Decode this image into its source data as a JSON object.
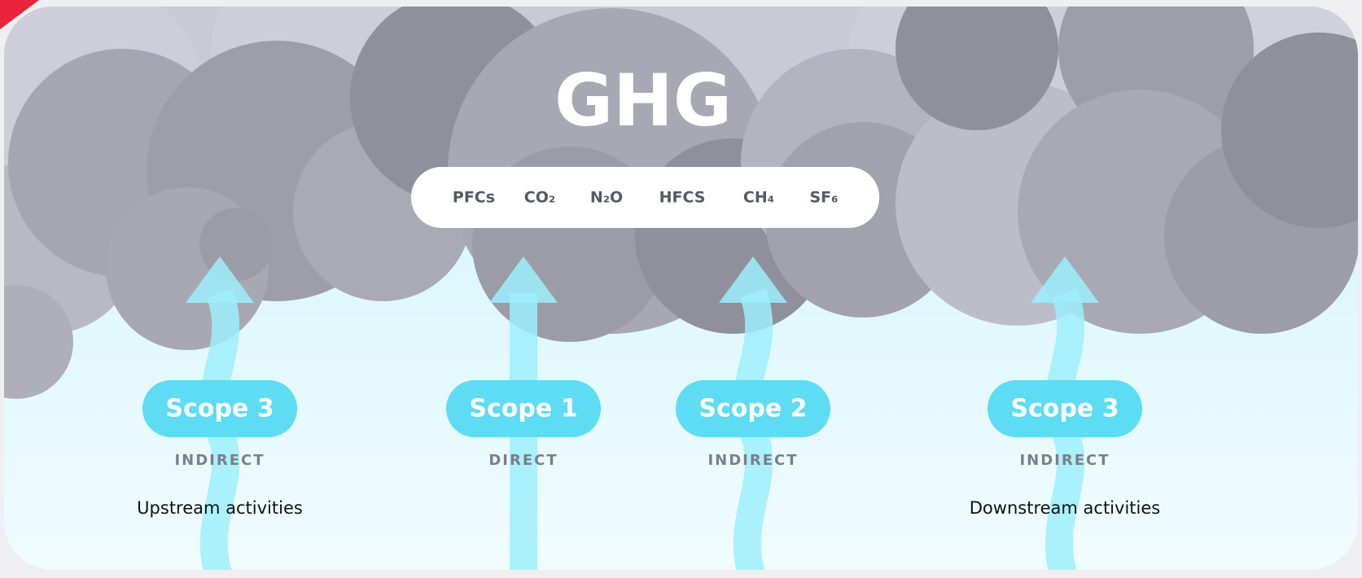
{
  "title": "GHG",
  "gases": [
    "PFCs",
    "CO₂",
    "N₂O",
    "HFCS",
    "CH₄",
    "SF₆"
  ],
  "scopes": [
    {
      "label": "Scope 3",
      "kind": "INDIRECT",
      "activity": "Upstream activities"
    },
    {
      "label": "Scope 1",
      "kind": "DIRECT"
    },
    {
      "label": "Scope 2",
      "kind": "INDIRECT"
    },
    {
      "label": "Scope 3",
      "kind": "INDIRECT",
      "activity": "Downstream activities"
    }
  ]
}
